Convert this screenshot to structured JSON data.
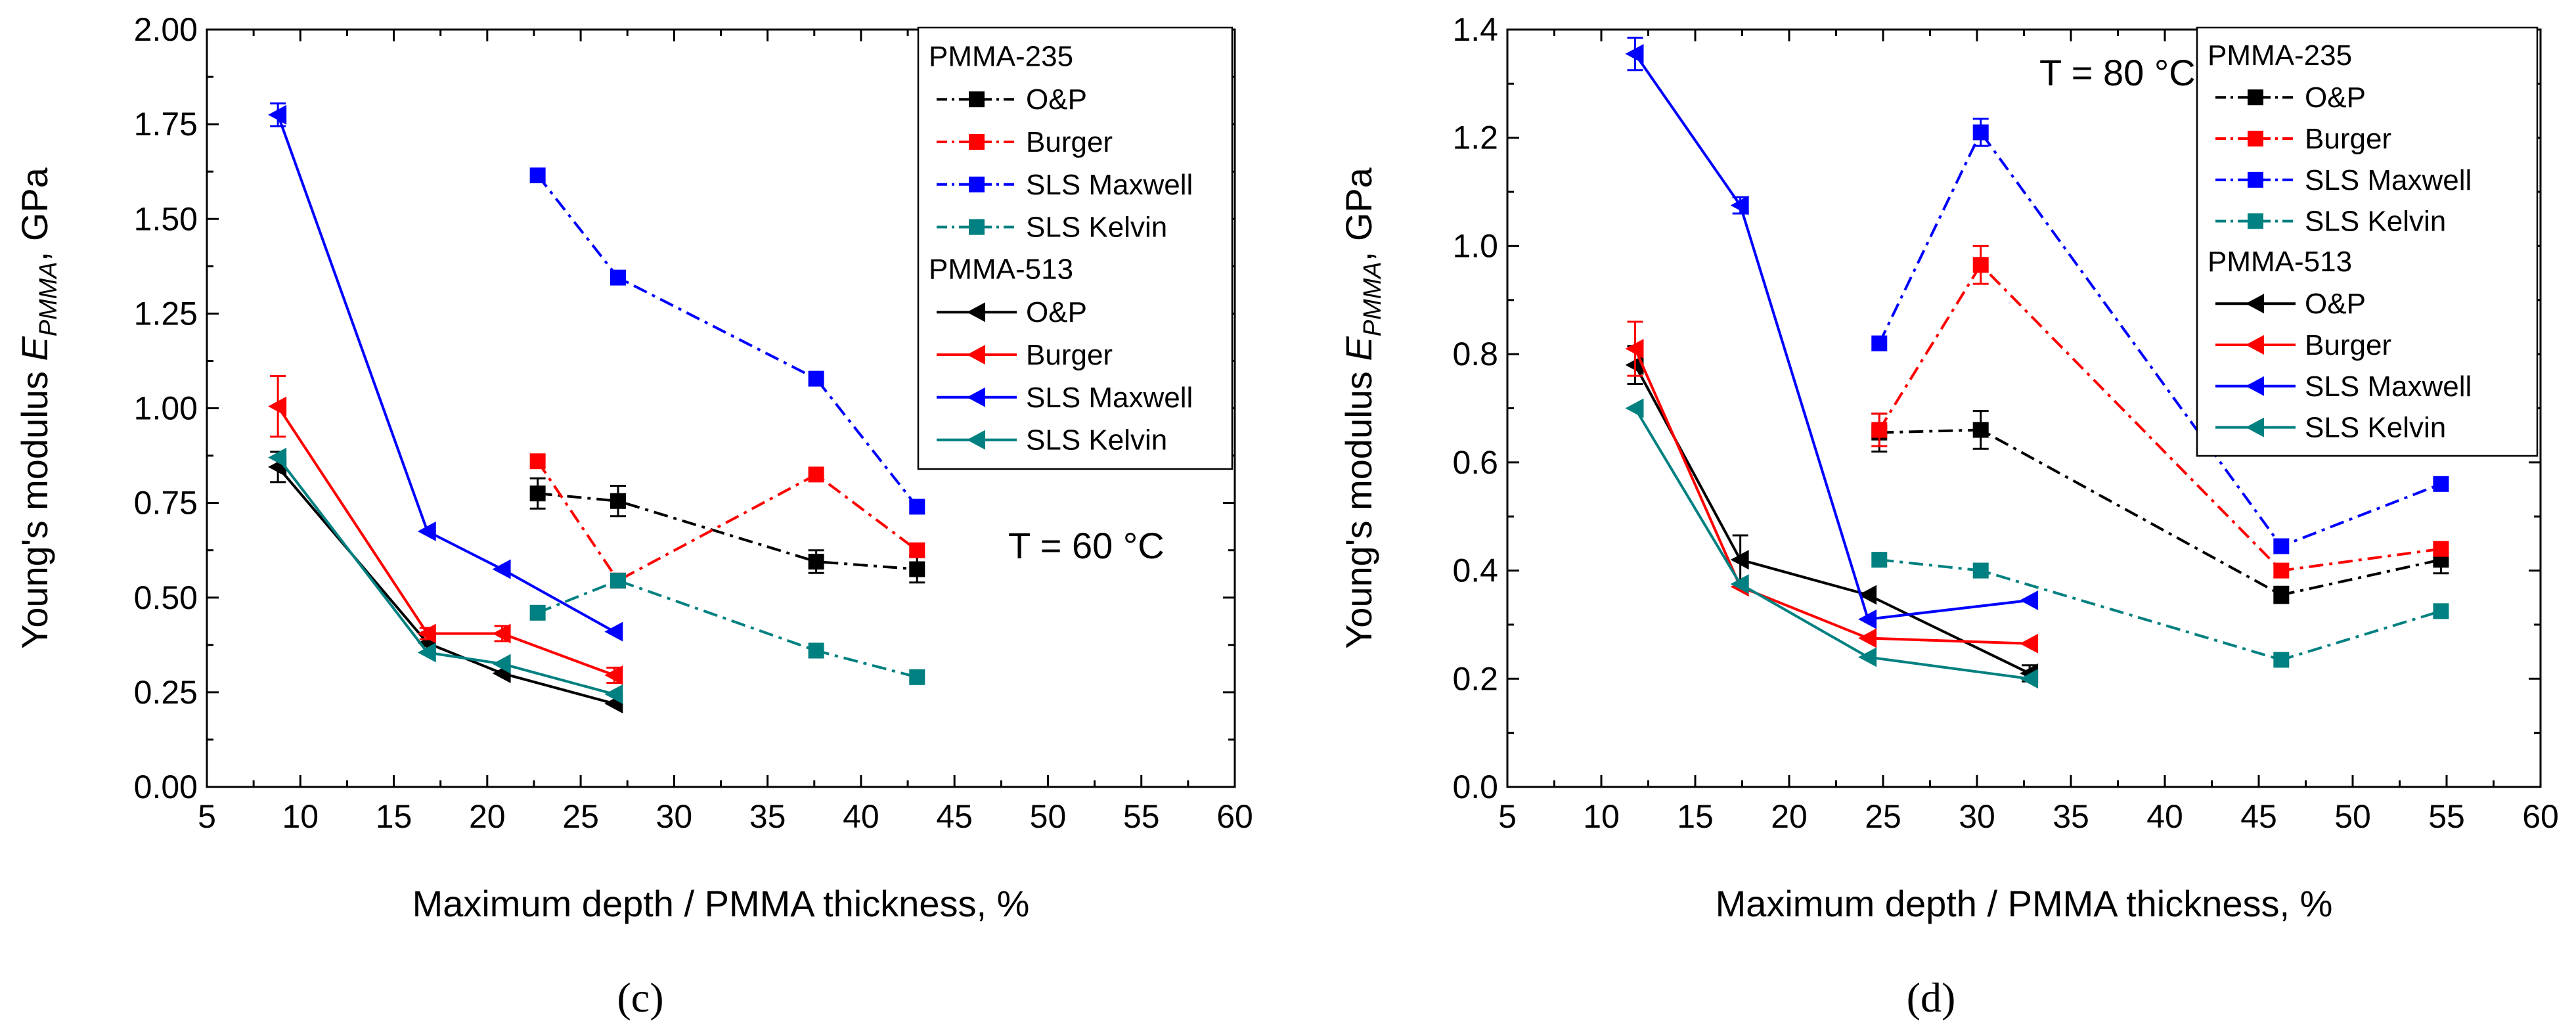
{
  "chart_data": [
    {
      "type": "line",
      "panel_label": "(c)",
      "annotation": "T = 60 °C",
      "xlabel": "Maximum depth / PMMA thickness, %",
      "ylabel": "Young's modulus E_PMMA, GPa",
      "xlim": [
        5,
        60
      ],
      "ylim": [
        0,
        2.0
      ],
      "xticks": [
        5,
        10,
        15,
        20,
        25,
        30,
        35,
        40,
        45,
        50,
        55,
        60
      ],
      "yticks": [
        0,
        0.25,
        0.5,
        0.75,
        1.0,
        1.25,
        1.5,
        1.75,
        2.0
      ],
      "ytick_labels": [
        "0.00",
        "0.25",
        "0.50",
        "0.75",
        "1.00",
        "1.25",
        "1.50",
        "1.75",
        "2.00"
      ],
      "legend": {
        "groups": [
          {
            "title": "PMMA-235",
            "entries": [
              "O&P",
              "Burger",
              "SLS Maxwell",
              "SLS Kelvin"
            ]
          },
          {
            "title": "PMMA-513",
            "entries": [
              "O&P",
              "Burger",
              "SLS Maxwell",
              "SLS Kelvin"
            ]
          }
        ]
      },
      "series": [
        {
          "name": "PMMA-235 O&P",
          "group": "PMMA-235",
          "model": "O&P",
          "color": "#000000",
          "marker": "square",
          "dash": "dashdot",
          "x": [
            22.7,
            27.0,
            37.6,
            43.0
          ],
          "y": [
            0.775,
            0.755,
            0.595,
            0.575
          ],
          "err": [
            0.04,
            0.04,
            0.03,
            0.035
          ]
        },
        {
          "name": "PMMA-235 Burger",
          "group": "PMMA-235",
          "model": "Burger",
          "color": "#ff0000",
          "marker": "square",
          "dash": "dashdot",
          "x": [
            22.7,
            27.0,
            37.6,
            43.0
          ],
          "y": [
            0.86,
            0.545,
            0.825,
            0.625
          ],
          "err": [
            0,
            0,
            0,
            0
          ]
        },
        {
          "name": "PMMA-235 SLS Maxwell",
          "group": "PMMA-235",
          "model": "SLS Maxwell",
          "color": "#0000ff",
          "marker": "square",
          "dash": "dashdot",
          "x": [
            22.7,
            27.0,
            37.6,
            43.0
          ],
          "y": [
            1.615,
            1.345,
            1.078,
            0.74
          ],
          "err": [
            0,
            0,
            0,
            0
          ]
        },
        {
          "name": "PMMA-235 SLS Kelvin",
          "group": "PMMA-235",
          "model": "SLS Kelvin",
          "color": "#008080",
          "marker": "square",
          "dash": "dashdot",
          "x": [
            22.7,
            27.0,
            37.6,
            43.0
          ],
          "y": [
            0.46,
            0.545,
            0.36,
            0.29
          ],
          "err": [
            0,
            0,
            0,
            0
          ]
        },
        {
          "name": "PMMA-513 O&P",
          "group": "PMMA-513",
          "model": "O&P",
          "color": "#000000",
          "marker": "triangle-left",
          "dash": "solid",
          "x": [
            8.8,
            16.8,
            20.8,
            26.8
          ],
          "y": [
            0.845,
            0.38,
            0.3,
            0.22
          ],
          "err": [
            0.04,
            0,
            0,
            0
          ]
        },
        {
          "name": "PMMA-513 Burger",
          "group": "PMMA-513",
          "model": "Burger",
          "color": "#ff0000",
          "marker": "triangle-left",
          "dash": "solid",
          "x": [
            8.8,
            16.8,
            20.8,
            26.8
          ],
          "y": [
            1.005,
            0.405,
            0.405,
            0.295
          ],
          "err": [
            0.08,
            0.015,
            0.02,
            0.02
          ]
        },
        {
          "name": "PMMA-513 SLS Maxwell",
          "group": "PMMA-513",
          "model": "SLS Maxwell",
          "color": "#0000ff",
          "marker": "triangle-left",
          "dash": "solid",
          "x": [
            8.8,
            16.8,
            20.8,
            26.8
          ],
          "y": [
            1.775,
            0.675,
            0.575,
            0.41
          ],
          "err": [
            0.03,
            0,
            0,
            0
          ]
        },
        {
          "name": "PMMA-513 SLS Kelvin",
          "group": "PMMA-513",
          "model": "SLS Kelvin",
          "color": "#008080",
          "marker": "triangle-left",
          "dash": "solid",
          "x": [
            8.8,
            16.8,
            20.8,
            26.8
          ],
          "y": [
            0.87,
            0.355,
            0.325,
            0.245
          ],
          "err": [
            0,
            0,
            0,
            0
          ]
        }
      ]
    },
    {
      "type": "line",
      "panel_label": "(d)",
      "annotation": "T = 80 °C",
      "xlabel": "Maximum depth / PMMA thickness, %",
      "ylabel": "Young's modulus E_PMMA, GPa",
      "xlim": [
        5,
        60
      ],
      "ylim": [
        0,
        1.4
      ],
      "xticks": [
        5,
        10,
        15,
        20,
        25,
        30,
        35,
        40,
        45,
        50,
        55,
        60
      ],
      "yticks": [
        0,
        0.2,
        0.4,
        0.6,
        0.8,
        1.0,
        1.2,
        1.4
      ],
      "ytick_labels": [
        "0.0",
        "0.2",
        "0.4",
        "0.6",
        "0.8",
        "1.0",
        "1.2",
        "1.4"
      ],
      "legend": {
        "groups": [
          {
            "title": "PMMA-235",
            "entries": [
              "O&P",
              "Burger",
              "SLS Maxwell",
              "SLS Kelvin"
            ]
          },
          {
            "title": "PMMA-513",
            "entries": [
              "O&P",
              "Burger",
              "SLS Maxwell",
              "SLS Kelvin"
            ]
          }
        ]
      },
      "series": [
        {
          "name": "PMMA-235 O&P",
          "group": "PMMA-235",
          "model": "O&P",
          "color": "#000000",
          "marker": "square",
          "dash": "dashdot",
          "x": [
            24.8,
            30.2,
            46.2,
            54.7
          ],
          "y": [
            0.655,
            0.66,
            0.355,
            0.42
          ],
          "err": [
            0.035,
            0.035,
            0.015,
            0.025
          ]
        },
        {
          "name": "PMMA-235 Burger",
          "group": "PMMA-235",
          "model": "Burger",
          "color": "#ff0000",
          "marker": "square",
          "dash": "dashdot",
          "x": [
            24.8,
            30.2,
            46.2,
            54.7
          ],
          "y": [
            0.66,
            0.965,
            0.4,
            0.44
          ],
          "err": [
            0.03,
            0.035,
            0,
            0
          ]
        },
        {
          "name": "PMMA-235 SLS Maxwell",
          "group": "PMMA-235",
          "model": "SLS Maxwell",
          "color": "#0000ff",
          "marker": "square",
          "dash": "dashdot",
          "x": [
            24.8,
            30.2,
            46.2,
            54.7
          ],
          "y": [
            0.82,
            1.21,
            0.445,
            0.56
          ],
          "err": [
            0,
            0.025,
            0,
            0
          ]
        },
        {
          "name": "PMMA-235 SLS Kelvin",
          "group": "PMMA-235",
          "model": "SLS Kelvin",
          "color": "#008080",
          "marker": "square",
          "dash": "dashdot",
          "x": [
            24.8,
            30.2,
            46.2,
            54.7
          ],
          "y": [
            0.42,
            0.4,
            0.235,
            0.325
          ],
          "err": [
            0,
            0,
            0,
            0
          ]
        },
        {
          "name": "PMMA-513 O&P",
          "group": "PMMA-513",
          "model": "O&P",
          "color": "#000000",
          "marker": "triangle-left",
          "dash": "solid",
          "x": [
            11.8,
            17.4,
            24.2,
            32.8
          ],
          "y": [
            0.78,
            0.42,
            0.355,
            0.21
          ],
          "err": [
            0.035,
            0.045,
            0,
            0.015
          ]
        },
        {
          "name": "PMMA-513 Burger",
          "group": "PMMA-513",
          "model": "Burger",
          "color": "#ff0000",
          "marker": "triangle-left",
          "dash": "solid",
          "x": [
            11.8,
            17.4,
            24.2,
            32.8
          ],
          "y": [
            0.81,
            0.37,
            0.275,
            0.265
          ],
          "err": [
            0.05,
            0,
            0,
            0
          ]
        },
        {
          "name": "PMMA-513 SLS Maxwell",
          "group": "PMMA-513",
          "model": "SLS Maxwell",
          "color": "#0000ff",
          "marker": "triangle-left",
          "dash": "solid",
          "x": [
            11.8,
            17.4,
            24.2,
            32.8
          ],
          "y": [
            1.355,
            1.075,
            0.31,
            0.345
          ],
          "err": [
            0.03,
            0.015,
            0,
            0
          ]
        },
        {
          "name": "PMMA-513 SLS Kelvin",
          "group": "PMMA-513",
          "model": "SLS Kelvin",
          "color": "#008080",
          "marker": "triangle-left",
          "dash": "solid",
          "x": [
            11.8,
            17.4,
            24.2,
            32.8
          ],
          "y": [
            0.7,
            0.375,
            0.24,
            0.2
          ],
          "err": [
            0,
            0,
            0,
            0
          ]
        }
      ]
    }
  ]
}
